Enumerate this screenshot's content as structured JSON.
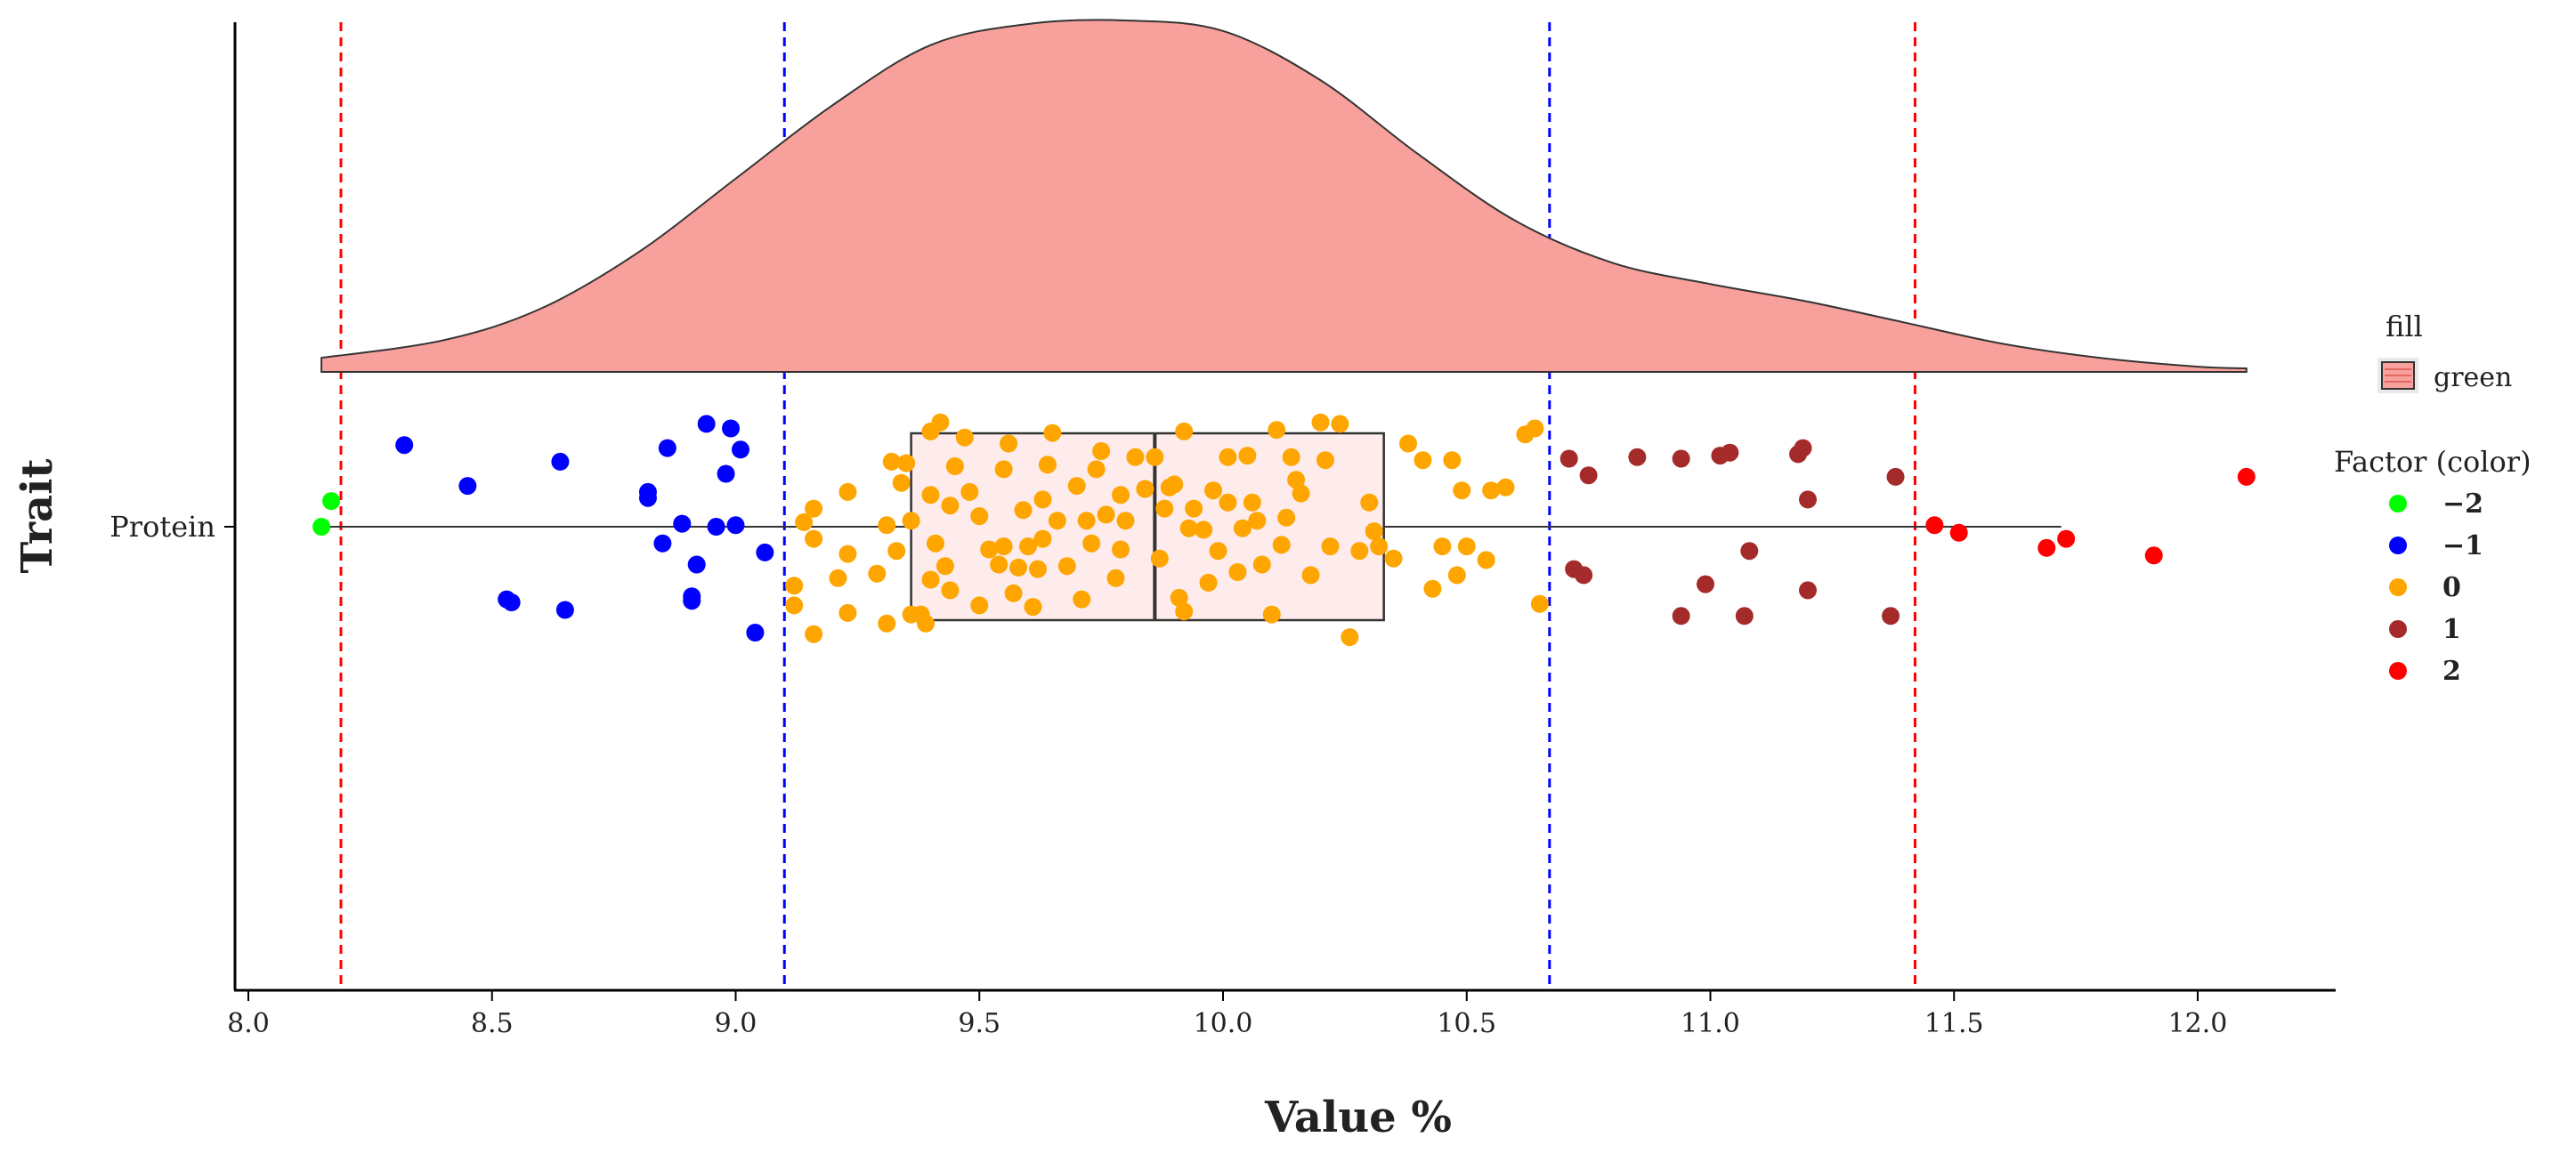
{
  "chart_data": {
    "type": "raincloud",
    "xlabel": "Value %",
    "ylabel": "Trait",
    "category": "Protein",
    "xlim": [
      7.98,
      12.3
    ],
    "x_ticks": [
      8.0,
      8.5,
      9.0,
      9.5,
      10.0,
      10.5,
      11.0,
      11.5,
      12.0
    ],
    "x_tick_labels": [
      "8.0",
      "8.5",
      "9.0",
      "9.5",
      "10.0",
      "10.5",
      "11.0",
      "11.5",
      "12.0"
    ],
    "reference_lines": [
      {
        "x": 8.19,
        "color": "#ff0000",
        "style": "dashed"
      },
      {
        "x": 9.1,
        "color": "#0000ff",
        "style": "dashed"
      },
      {
        "x": 10.67,
        "color": "#0000ff",
        "style": "dashed"
      },
      {
        "x": 11.42,
        "color": "#ff0000",
        "style": "dashed"
      }
    ],
    "boxplot": {
      "q1": 9.36,
      "median": 9.86,
      "q3": 10.33,
      "whisker_low": 8.15,
      "whisker_high": 11.72
    },
    "density": {
      "fill": "#f8a19c",
      "x": [
        8.15,
        8.4,
        8.6,
        8.8,
        9.0,
        9.2,
        9.4,
        9.6,
        9.8,
        10.0,
        10.2,
        10.4,
        10.6,
        10.8,
        11.0,
        11.2,
        11.4,
        11.6,
        11.8,
        12.0,
        12.1
      ],
      "y": [
        0.04,
        0.09,
        0.18,
        0.34,
        0.55,
        0.76,
        0.93,
        0.99,
        1.0,
        0.97,
        0.83,
        0.62,
        0.43,
        0.31,
        0.25,
        0.2,
        0.14,
        0.08,
        0.04,
        0.015,
        0.01
      ]
    },
    "legend": {
      "fill_title": "fill",
      "fill_label": "green",
      "factor_title": "Factor (color)",
      "factor_items": [
        {
          "label": "−2",
          "color": "#00ff00"
        },
        {
          "label": "−1",
          "color": "#0000ff"
        },
        {
          "label": "0",
          "color": "#ffa500"
        },
        {
          "label": "1",
          "color": "#a52a2a"
        },
        {
          "label": "2",
          "color": "#ff0000"
        }
      ]
    },
    "points": [
      {
        "value": 8.15,
        "jitter": 0.0,
        "factor": "−2"
      },
      {
        "value": 8.17,
        "jitter": 0.17,
        "factor": "−2"
      },
      {
        "value": 8.32,
        "jitter": 0.54,
        "factor": "−1"
      },
      {
        "value": 8.45,
        "jitter": 0.27,
        "factor": "−1"
      },
      {
        "value": 8.53,
        "jitter": -0.48,
        "factor": "−1"
      },
      {
        "value": 8.54,
        "jitter": -0.5,
        "factor": "−1"
      },
      {
        "value": 8.64,
        "jitter": 0.43,
        "factor": "−1"
      },
      {
        "value": 8.65,
        "jitter": -0.55,
        "factor": "−1"
      },
      {
        "value": 8.82,
        "jitter": 0.23,
        "factor": "−1"
      },
      {
        "value": 8.82,
        "jitter": 0.19,
        "factor": "−1"
      },
      {
        "value": 8.85,
        "jitter": -0.11,
        "factor": "−1"
      },
      {
        "value": 8.86,
        "jitter": 0.52,
        "factor": "−1"
      },
      {
        "value": 8.89,
        "jitter": 0.02,
        "factor": "−1"
      },
      {
        "value": 8.91,
        "jitter": -0.46,
        "factor": "−1"
      },
      {
        "value": 8.91,
        "jitter": -0.49,
        "factor": "−1"
      },
      {
        "value": 8.92,
        "jitter": -0.25,
        "factor": "−1"
      },
      {
        "value": 8.94,
        "jitter": 0.68,
        "factor": "−1"
      },
      {
        "value": 8.96,
        "jitter": 0.0,
        "factor": "−1"
      },
      {
        "value": 8.98,
        "jitter": 0.35,
        "factor": "−1"
      },
      {
        "value": 8.99,
        "jitter": 0.65,
        "factor": "−1"
      },
      {
        "value": 9.0,
        "jitter": 0.01,
        "factor": "−1"
      },
      {
        "value": 9.01,
        "jitter": 0.51,
        "factor": "−1"
      },
      {
        "value": 9.04,
        "jitter": -0.7,
        "factor": "−1"
      },
      {
        "value": 9.06,
        "jitter": -0.17,
        "factor": "−1"
      },
      {
        "value": 9.12,
        "jitter": -0.39,
        "factor": "0"
      },
      {
        "value": 9.12,
        "jitter": -0.52,
        "factor": "0"
      },
      {
        "value": 9.14,
        "jitter": 0.03,
        "factor": "0"
      },
      {
        "value": 9.16,
        "jitter": 0.12,
        "factor": "0"
      },
      {
        "value": 9.16,
        "jitter": -0.71,
        "factor": "0"
      },
      {
        "value": 9.16,
        "jitter": -0.08,
        "factor": "0"
      },
      {
        "value": 9.21,
        "jitter": -0.34,
        "factor": "0"
      },
      {
        "value": 9.23,
        "jitter": 0.23,
        "factor": "0"
      },
      {
        "value": 9.23,
        "jitter": -0.18,
        "factor": "0"
      },
      {
        "value": 9.23,
        "jitter": -0.57,
        "factor": "0"
      },
      {
        "value": 9.29,
        "jitter": -0.31,
        "factor": "0"
      },
      {
        "value": 9.31,
        "jitter": 0.01,
        "factor": "0"
      },
      {
        "value": 9.31,
        "jitter": -0.64,
        "factor": "0"
      },
      {
        "value": 9.32,
        "jitter": 0.43,
        "factor": "0"
      },
      {
        "value": 9.33,
        "jitter": -0.16,
        "factor": "0"
      },
      {
        "value": 9.34,
        "jitter": 0.29,
        "factor": "0"
      },
      {
        "value": 9.35,
        "jitter": 0.42,
        "factor": "0"
      },
      {
        "value": 9.36,
        "jitter": -0.58,
        "factor": "0"
      },
      {
        "value": 9.36,
        "jitter": 0.04,
        "factor": "0"
      },
      {
        "value": 9.38,
        "jitter": -0.58,
        "factor": "0"
      },
      {
        "value": 9.39,
        "jitter": -0.64,
        "factor": "0"
      },
      {
        "value": 9.4,
        "jitter": -0.35,
        "factor": "0"
      },
      {
        "value": 9.4,
        "jitter": 0.63,
        "factor": "0"
      },
      {
        "value": 9.4,
        "jitter": 0.21,
        "factor": "0"
      },
      {
        "value": 9.41,
        "jitter": -0.11,
        "factor": "0"
      },
      {
        "value": 9.42,
        "jitter": 0.69,
        "factor": "0"
      },
      {
        "value": 9.43,
        "jitter": -0.26,
        "factor": "0"
      },
      {
        "value": 9.44,
        "jitter": 0.14,
        "factor": "0"
      },
      {
        "value": 9.44,
        "jitter": -0.42,
        "factor": "0"
      },
      {
        "value": 9.45,
        "jitter": 0.4,
        "factor": "0"
      },
      {
        "value": 9.47,
        "jitter": 0.59,
        "factor": "0"
      },
      {
        "value": 9.48,
        "jitter": 0.23,
        "factor": "0"
      },
      {
        "value": 9.5,
        "jitter": -0.52,
        "factor": "0"
      },
      {
        "value": 9.5,
        "jitter": 0.07,
        "factor": "0"
      },
      {
        "value": 9.52,
        "jitter": -0.15,
        "factor": "0"
      },
      {
        "value": 9.54,
        "jitter": -0.25,
        "factor": "0"
      },
      {
        "value": 9.55,
        "jitter": 0.38,
        "factor": "0"
      },
      {
        "value": 9.55,
        "jitter": -0.13,
        "factor": "0"
      },
      {
        "value": 9.56,
        "jitter": 0.55,
        "factor": "0"
      },
      {
        "value": 9.57,
        "jitter": -0.44,
        "factor": "0"
      },
      {
        "value": 9.58,
        "jitter": -0.27,
        "factor": "0"
      },
      {
        "value": 9.59,
        "jitter": 0.11,
        "factor": "0"
      },
      {
        "value": 9.6,
        "jitter": -0.13,
        "factor": "0"
      },
      {
        "value": 9.61,
        "jitter": -0.53,
        "factor": "0"
      },
      {
        "value": 9.62,
        "jitter": -0.28,
        "factor": "0"
      },
      {
        "value": 9.63,
        "jitter": -0.08,
        "factor": "0"
      },
      {
        "value": 9.63,
        "jitter": 0.18,
        "factor": "0"
      },
      {
        "value": 9.64,
        "jitter": 0.41,
        "factor": "0"
      },
      {
        "value": 9.65,
        "jitter": 0.62,
        "factor": "0"
      },
      {
        "value": 9.66,
        "jitter": 0.04,
        "factor": "0"
      },
      {
        "value": 9.68,
        "jitter": -0.26,
        "factor": "0"
      },
      {
        "value": 9.7,
        "jitter": 0.27,
        "factor": "0"
      },
      {
        "value": 9.71,
        "jitter": -0.48,
        "factor": "0"
      },
      {
        "value": 9.72,
        "jitter": 0.04,
        "factor": "0"
      },
      {
        "value": 9.73,
        "jitter": -0.11,
        "factor": "0"
      },
      {
        "value": 9.74,
        "jitter": 0.38,
        "factor": "0"
      },
      {
        "value": 9.75,
        "jitter": 0.5,
        "factor": "0"
      },
      {
        "value": 9.76,
        "jitter": 0.08,
        "factor": "0"
      },
      {
        "value": 9.78,
        "jitter": -0.34,
        "factor": "0"
      },
      {
        "value": 9.79,
        "jitter": -0.15,
        "factor": "0"
      },
      {
        "value": 9.79,
        "jitter": 0.21,
        "factor": "0"
      },
      {
        "value": 9.8,
        "jitter": 0.04,
        "factor": "0"
      },
      {
        "value": 9.82,
        "jitter": 0.46,
        "factor": "0"
      },
      {
        "value": 9.84,
        "jitter": 0.25,
        "factor": "0"
      },
      {
        "value": 9.86,
        "jitter": 0.46,
        "factor": "0"
      },
      {
        "value": 9.87,
        "jitter": -0.21,
        "factor": "0"
      },
      {
        "value": 9.88,
        "jitter": 0.12,
        "factor": "0"
      },
      {
        "value": 9.89,
        "jitter": 0.26,
        "factor": "0"
      },
      {
        "value": 9.9,
        "jitter": 0.28,
        "factor": "0"
      },
      {
        "value": 9.91,
        "jitter": -0.47,
        "factor": "0"
      },
      {
        "value": 9.92,
        "jitter": 0.63,
        "factor": "0"
      },
      {
        "value": 9.92,
        "jitter": -0.56,
        "factor": "0"
      },
      {
        "value": 9.93,
        "jitter": -0.01,
        "factor": "0"
      },
      {
        "value": 9.94,
        "jitter": 0.12,
        "factor": "0"
      },
      {
        "value": 9.96,
        "jitter": -0.02,
        "factor": "0"
      },
      {
        "value": 9.97,
        "jitter": -0.37,
        "factor": "0"
      },
      {
        "value": 9.98,
        "jitter": 0.24,
        "factor": "0"
      },
      {
        "value": 9.99,
        "jitter": -0.16,
        "factor": "0"
      },
      {
        "value": 10.01,
        "jitter": 0.46,
        "factor": "0"
      },
      {
        "value": 10.01,
        "jitter": 0.16,
        "factor": "0"
      },
      {
        "value": 10.03,
        "jitter": -0.3,
        "factor": "0"
      },
      {
        "value": 10.04,
        "jitter": -0.01,
        "factor": "0"
      },
      {
        "value": 10.05,
        "jitter": 0.47,
        "factor": "0"
      },
      {
        "value": 10.06,
        "jitter": 0.16,
        "factor": "0"
      },
      {
        "value": 10.07,
        "jitter": 0.04,
        "factor": "0"
      },
      {
        "value": 10.08,
        "jitter": -0.25,
        "factor": "0"
      },
      {
        "value": 10.1,
        "jitter": -0.58,
        "factor": "0"
      },
      {
        "value": 10.11,
        "jitter": 0.64,
        "factor": "0"
      },
      {
        "value": 10.12,
        "jitter": -0.12,
        "factor": "0"
      },
      {
        "value": 10.13,
        "jitter": 0.06,
        "factor": "0"
      },
      {
        "value": 10.14,
        "jitter": 0.46,
        "factor": "0"
      },
      {
        "value": 10.15,
        "jitter": 0.31,
        "factor": "0"
      },
      {
        "value": 10.16,
        "jitter": 0.22,
        "factor": "0"
      },
      {
        "value": 10.18,
        "jitter": -0.32,
        "factor": "0"
      },
      {
        "value": 10.2,
        "jitter": 0.69,
        "factor": "0"
      },
      {
        "value": 10.21,
        "jitter": 0.44,
        "factor": "0"
      },
      {
        "value": 10.22,
        "jitter": -0.13,
        "factor": "0"
      },
      {
        "value": 10.24,
        "jitter": 0.68,
        "factor": "0"
      },
      {
        "value": 10.26,
        "jitter": -0.73,
        "factor": "0"
      },
      {
        "value": 10.28,
        "jitter": -0.16,
        "factor": "0"
      },
      {
        "value": 10.3,
        "jitter": 0.16,
        "factor": "0"
      },
      {
        "value": 10.31,
        "jitter": -0.03,
        "factor": "0"
      },
      {
        "value": 10.32,
        "jitter": -0.13,
        "factor": "0"
      },
      {
        "value": 10.35,
        "jitter": -0.21,
        "factor": "0"
      },
      {
        "value": 10.38,
        "jitter": 0.55,
        "factor": "0"
      },
      {
        "value": 10.41,
        "jitter": 0.44,
        "factor": "0"
      },
      {
        "value": 10.43,
        "jitter": -0.41,
        "factor": "0"
      },
      {
        "value": 10.45,
        "jitter": -0.13,
        "factor": "0"
      },
      {
        "value": 10.47,
        "jitter": 0.44,
        "factor": "0"
      },
      {
        "value": 10.48,
        "jitter": -0.32,
        "factor": "0"
      },
      {
        "value": 10.49,
        "jitter": 0.24,
        "factor": "0"
      },
      {
        "value": 10.5,
        "jitter": -0.13,
        "factor": "0"
      },
      {
        "value": 10.54,
        "jitter": -0.22,
        "factor": "0"
      },
      {
        "value": 10.55,
        "jitter": 0.24,
        "factor": "0"
      },
      {
        "value": 10.58,
        "jitter": 0.26,
        "factor": "0"
      },
      {
        "value": 10.62,
        "jitter": 0.61,
        "factor": "0"
      },
      {
        "value": 10.64,
        "jitter": 0.65,
        "factor": "0"
      },
      {
        "value": 10.65,
        "jitter": -0.51,
        "factor": "0"
      },
      {
        "value": 10.71,
        "jitter": 0.45,
        "factor": "1"
      },
      {
        "value": 10.72,
        "jitter": -0.28,
        "factor": "1"
      },
      {
        "value": 10.74,
        "jitter": -0.32,
        "factor": "1"
      },
      {
        "value": 10.75,
        "jitter": 0.34,
        "factor": "1"
      },
      {
        "value": 10.85,
        "jitter": 0.46,
        "factor": "1"
      },
      {
        "value": 10.94,
        "jitter": 0.45,
        "factor": "1"
      },
      {
        "value": 10.94,
        "jitter": -0.59,
        "factor": "1"
      },
      {
        "value": 10.99,
        "jitter": -0.38,
        "factor": "1"
      },
      {
        "value": 11.02,
        "jitter": 0.47,
        "factor": "1"
      },
      {
        "value": 11.04,
        "jitter": 0.49,
        "factor": "1"
      },
      {
        "value": 11.07,
        "jitter": -0.59,
        "factor": "1"
      },
      {
        "value": 11.08,
        "jitter": -0.16,
        "factor": "1"
      },
      {
        "value": 11.18,
        "jitter": 0.48,
        "factor": "1"
      },
      {
        "value": 11.19,
        "jitter": 0.52,
        "factor": "1"
      },
      {
        "value": 11.2,
        "jitter": 0.18,
        "factor": "1"
      },
      {
        "value": 11.2,
        "jitter": -0.42,
        "factor": "1"
      },
      {
        "value": 11.37,
        "jitter": -0.59,
        "factor": "1"
      },
      {
        "value": 11.38,
        "jitter": 0.33,
        "factor": "1"
      },
      {
        "value": 11.46,
        "jitter": 0.01,
        "factor": "2"
      },
      {
        "value": 11.51,
        "jitter": -0.04,
        "factor": "2"
      },
      {
        "value": 11.69,
        "jitter": -0.14,
        "factor": "2"
      },
      {
        "value": 11.73,
        "jitter": -0.08,
        "factor": "2"
      },
      {
        "value": 11.91,
        "jitter": -0.19,
        "factor": "2"
      },
      {
        "value": 12.1,
        "jitter": 0.33,
        "factor": "2"
      }
    ]
  }
}
